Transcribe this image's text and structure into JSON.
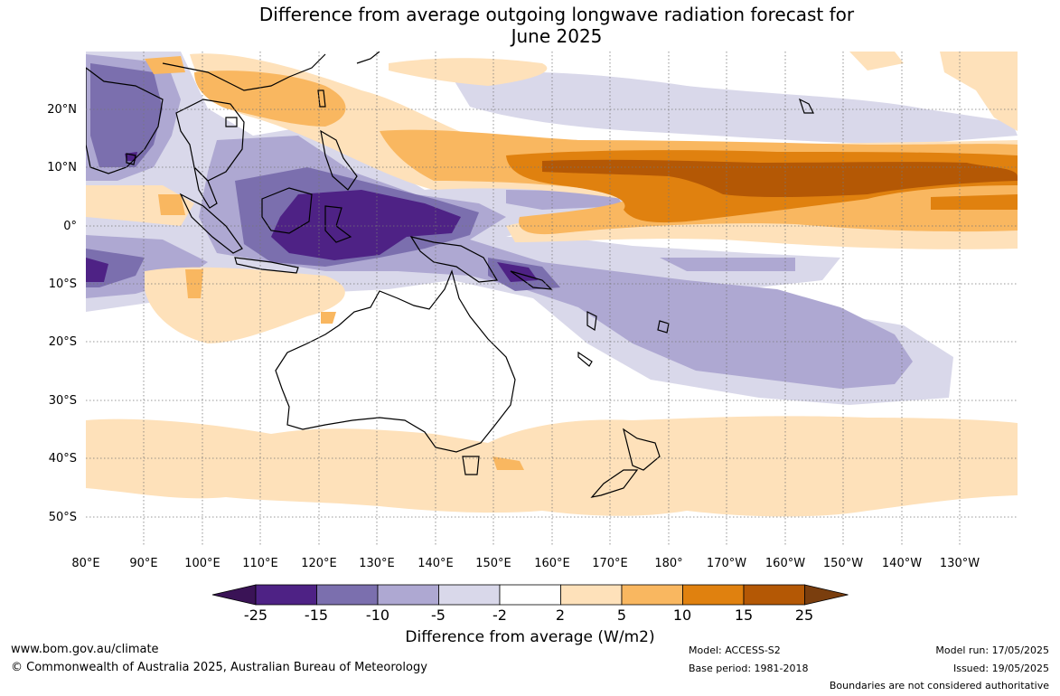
{
  "title": {
    "line1": "Difference from average outgoing longwave radiation forecast for",
    "line2": "June 2025"
  },
  "map": {
    "latitude_labels": [
      "20°N",
      "10°N",
      "0°",
      "10°S",
      "20°S",
      "30°S",
      "40°S",
      "50°S"
    ],
    "longitude_labels": [
      "80°E",
      "90°E",
      "100°E",
      "110°E",
      "120°E",
      "130°E",
      "140°E",
      "150°E",
      "160°E",
      "170°E",
      "180°",
      "170°W",
      "160°W",
      "150°W",
      "140°W",
      "130°W"
    ]
  },
  "colorbar": {
    "tick_labels": [
      "-25",
      "-15",
      "-10",
      "-5",
      "-2",
      "2",
      "5",
      "10",
      "15",
      "25"
    ],
    "colors": [
      "#3a1356",
      "#4e2285",
      "#7b6fae",
      "#aea8d2",
      "#d9d8ea",
      "#ffffff",
      "#fee1ba",
      "#f9b760",
      "#e0810f",
      "#b45805",
      "#7a3e0e"
    ],
    "title": "Difference from average (W/m2)"
  },
  "footer": {
    "website": "www.bom.gov.au/climate",
    "copyright": "© Commonwealth of Australia 2025, Australian Bureau of Meteorology",
    "model": "Model: ACCESS-S2",
    "base_period": "Base period: 1981-2018",
    "model_run": "Model run: 17/05/2025",
    "issued": "Issued: 19/05/2025",
    "disclaimer": "Boundaries are not considered authoritative"
  }
}
